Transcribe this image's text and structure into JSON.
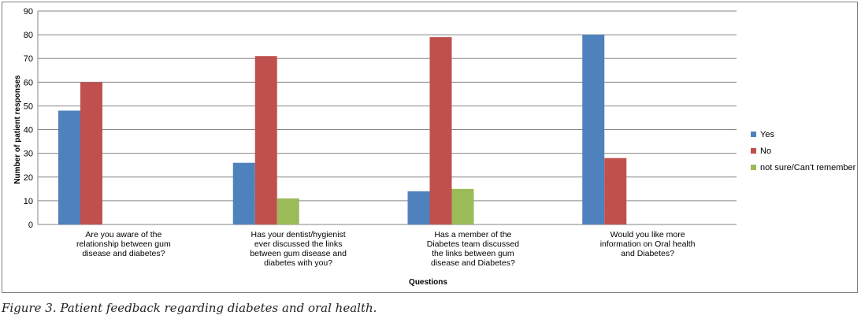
{
  "chart_data": {
    "type": "bar",
    "categories": [
      [
        "Are you aware of the",
        "relationship between gum",
        "disease and diabetes?"
      ],
      [
        "Has your dentist/hygienist",
        "ever discussed the links",
        "between gum disease and",
        "diabetes with you?"
      ],
      [
        "Has a member of the",
        "Diabetes team discussed",
        "the links between gum",
        "disease and Diabetes?"
      ],
      [
        "Would you like more",
        "information on Oral health",
        "and Diabetes?"
      ]
    ],
    "series": [
      {
        "name": "Yes",
        "color": "#4f81bd",
        "values": [
          48,
          26,
          14,
          80
        ]
      },
      {
        "name": "No",
        "color": "#c0504d",
        "values": [
          60,
          71,
          79,
          28
        ]
      },
      {
        "name": "not sure/Can't remember",
        "color": "#9bbb59",
        "values": [
          null,
          11,
          15,
          null
        ]
      }
    ],
    "xlabel": "Questions",
    "ylabel": "Number of patient responses",
    "ylim": [
      0,
      90
    ],
    "yticks": [
      0,
      10,
      20,
      30,
      40,
      50,
      60,
      70,
      80,
      90
    ],
    "grid": true,
    "legend_position": "right"
  },
  "caption": "Figure 3. Patient feedback regarding diabetes and oral health."
}
